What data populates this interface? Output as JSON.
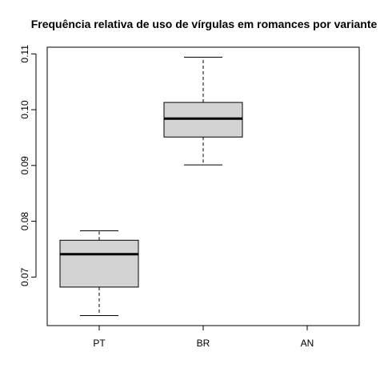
{
  "chart_data": {
    "type": "boxplot",
    "title": "Frequência relativa de uso de vírgulas em romances por variante",
    "xlabel": "",
    "ylabel": "",
    "categories": [
      "PT",
      "BR",
      "AN"
    ],
    "boxes": [
      {
        "category": "PT",
        "min": 0.0631,
        "q1": 0.0682,
        "median": 0.0741,
        "q3": 0.0766,
        "max": 0.0783
      },
      {
        "category": "BR",
        "min": 0.0901,
        "q1": 0.0951,
        "median": 0.0984,
        "q3": 0.1013,
        "max": 0.1094
      },
      {
        "category": "AN",
        "min": null,
        "q1": null,
        "median": null,
        "q3": null,
        "max": null
      }
    ],
    "ylim": [
      0.0613,
      0.1112
    ],
    "yticks": [
      "0.07",
      "0.08",
      "0.09",
      "0.10",
      "0.11"
    ],
    "ytick_values": [
      0.07,
      0.08,
      0.09,
      0.1,
      0.11
    ],
    "box_color": "#d3d3d3",
    "grid": false,
    "legend": "none"
  }
}
